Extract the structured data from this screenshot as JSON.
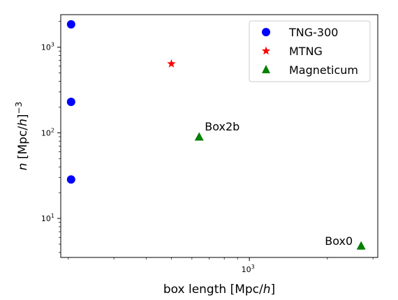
{
  "chart_data": {
    "type": "scatter",
    "xscale": "log",
    "yscale": "log",
    "xlim": [
      187,
      3130
    ],
    "ylim": [
      3.5,
      2400
    ],
    "xlabel_main": "box length [Mpc/",
    "xlabel_italic": "h",
    "xlabel_end": "]",
    "ylabel_main": "n [Mpc/",
    "ylabel_italic": "h",
    "ylabel_end": "]",
    "ylabel_exp": "−3",
    "x_ticks": [
      {
        "base": "10",
        "exp": "3",
        "value": 1000
      }
    ],
    "y_ticks": [
      {
        "base": "10",
        "exp": "1",
        "value": 10
      },
      {
        "base": "10",
        "exp": "2",
        "value": 100
      },
      {
        "base": "10",
        "exp": "3",
        "value": 1000
      }
    ],
    "series": [
      {
        "name": "TNG-300",
        "marker": "circle",
        "color": "#0000ff",
        "x": [
          205,
          205,
          205
        ],
        "y": [
          1850,
          230,
          28.5
        ]
      },
      {
        "name": "MTNG",
        "marker": "star",
        "color": "#ff0000",
        "x": [
          500
        ],
        "y": [
          640
        ]
      },
      {
        "name": "Magneticum",
        "marker": "triangle",
        "color": "#008000",
        "x": [
          640,
          2700
        ],
        "y": [
          90,
          4.8
        ]
      }
    ],
    "annotations": [
      {
        "text": "Box2b",
        "x": 640,
        "y": 90
      },
      {
        "text": "Box0",
        "x": 2700,
        "y": 4.8
      }
    ],
    "legend_position": "top-right",
    "grid": false
  }
}
